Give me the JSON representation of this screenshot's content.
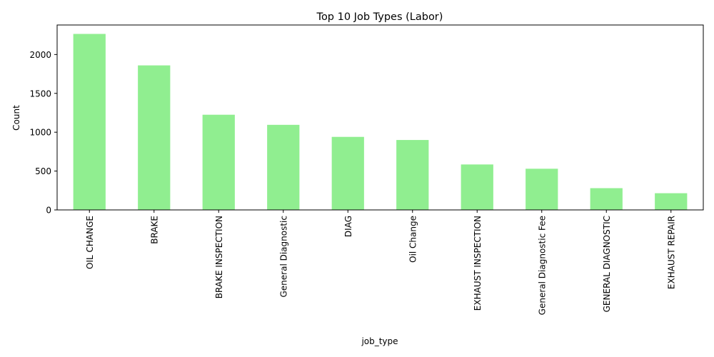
{
  "chart_data": {
    "type": "bar",
    "title": "Top 10 Job Types (Labor)",
    "xlabel": "job_type",
    "ylabel": "Count",
    "categories": [
      "OIL CHANGE",
      "BRAKE",
      "BRAKE INSPECTION",
      "General Diagnostic",
      "DIAG",
      "Oil Change",
      "EXHAUST INSPECTION",
      "General Diagnostic Fee",
      "GENERAL DIAGNOSTIC",
      "EXHAUST REPAIR"
    ],
    "values": [
      2265,
      1860,
      1225,
      1095,
      940,
      900,
      585,
      530,
      280,
      215
    ],
    "ylim": [
      0,
      2380
    ],
    "yticks": [
      0,
      500,
      1000,
      1500,
      2000
    ],
    "bar_color": "#90ee90",
    "grid": false,
    "legend": null
  }
}
